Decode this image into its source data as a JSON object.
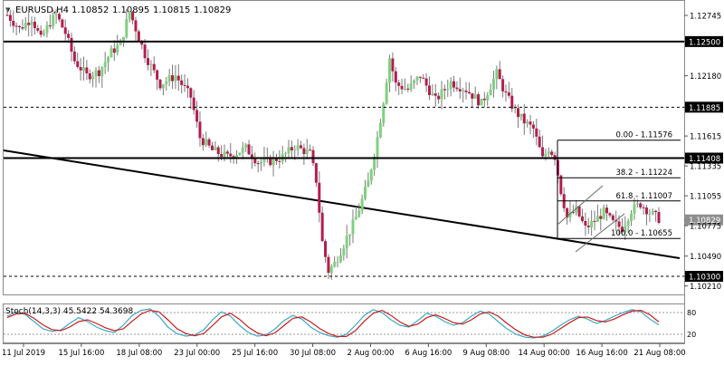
{
  "header": {
    "menu_arrow": "▼",
    "symbol": "EURUSD,H4",
    "open": "1.10852",
    "high": "1.10895",
    "low": "1.10815",
    "close": "1.10829"
  },
  "colors": {
    "bull": "#7ed17e",
    "bear": "#b21e4c",
    "wick": "#7a7a7a",
    "stoch_main": "#39a9c9",
    "stoch_signal": "#c81e1e",
    "current_price_box": "#8e8e8e",
    "level_box": "#000000"
  },
  "chart_data": [
    {
      "type": "candlestick",
      "symbol": "EURUSD",
      "timeframe": "H4",
      "ylim": [
        1.1019,
        1.1283
      ],
      "y_ticks": [
        "1.12745",
        "1.12500",
        "1.12180",
        "1.11885",
        "1.11615",
        "1.11408",
        "1.11335",
        "1.11055",
        "1.10829",
        "1.10775",
        "1.10490",
        "1.10300",
        "1.10210"
      ],
      "x_ticks": [
        "11 Jul 2019",
        "15 Jul 16:00",
        "18 Jul 08:00",
        "23 Jul 00:00",
        "25 Jul 16:00",
        "30 Jul 08:00",
        "2 Aug 00:00",
        "6 Aug 16:00",
        "9 Aug 08:00",
        "14 Aug 00:00",
        "16 Aug 16:00",
        "21 Aug 08:00"
      ],
      "current_price": "1.10829",
      "horizontal_levels": [
        {
          "price": 1.125,
          "label": "1.12500",
          "style": "solid"
        },
        {
          "price": 1.11885,
          "label": "1.11885",
          "style": "dashed"
        },
        {
          "price": 1.11408,
          "label": "1.11408",
          "style": "solid"
        },
        {
          "price": 1.103,
          "label": "1.10300",
          "style": "dashed"
        }
      ],
      "trendline": {
        "from": [
          "11 Jul 2019",
          1.1148
        ],
        "to": [
          "21 Aug 08:00",
          1.1047
        ]
      },
      "fibonacci": [
        {
          "label": "0.00 - 1.11576",
          "price": 1.11576
        },
        {
          "label": "38.2 - 1.11224",
          "price": 1.11224
        },
        {
          "label": "61.8 - 1.11007",
          "price": 1.11007
        },
        {
          "label": "100.0 - 1.10655",
          "price": 1.10655
        }
      ],
      "path_points": [
        [
          0,
          1.1275
        ],
        [
          4,
          1.1262
        ],
        [
          8,
          1.1272
        ],
        [
          11,
          1.1252
        ],
        [
          14,
          1.1268
        ],
        [
          16,
          1.1275
        ],
        [
          19,
          1.1258
        ],
        [
          22,
          1.1232
        ],
        [
          26,
          1.1218
        ],
        [
          30,
          1.1222
        ],
        [
          34,
          1.124
        ],
        [
          37,
          1.1248
        ],
        [
          40,
          1.1278
        ],
        [
          42,
          1.1262
        ],
        [
          45,
          1.1238
        ],
        [
          50,
          1.121
        ],
        [
          55,
          1.1218
        ],
        [
          60,
          1.1198
        ],
        [
          63,
          1.116
        ],
        [
          67,
          1.1148
        ],
        [
          72,
          1.1142
        ],
        [
          78,
          1.115
        ],
        [
          82,
          1.1137
        ],
        [
          86,
          1.1138
        ],
        [
          90,
          1.1142
        ],
        [
          94,
          1.1152
        ],
        [
          99,
          1.1145
        ],
        [
          101,
          1.112
        ],
        [
          103,
          1.1062
        ],
        [
          105,
          1.1035
        ],
        [
          107,
          1.1042
        ],
        [
          110,
          1.106
        ],
        [
          114,
          1.1085
        ],
        [
          118,
          1.1118
        ],
        [
          121,
          1.116
        ],
        [
          123,
          1.1195
        ],
        [
          125,
          1.1235
        ],
        [
          127,
          1.121
        ],
        [
          131,
          1.1205
        ],
        [
          135,
          1.1218
        ],
        [
          140,
          1.1195
        ],
        [
          145,
          1.1212
        ],
        [
          150,
          1.1205
        ],
        [
          155,
          1.1192
        ],
        [
          160,
          1.122
        ],
        [
          163,
          1.12
        ],
        [
          166,
          1.1185
        ],
        [
          169,
          1.1175
        ],
        [
          172,
          1.1168
        ],
        [
          175,
          1.114
        ],
        [
          177,
          1.115
        ],
        [
          179,
          1.1142
        ],
        [
          181,
          1.111
        ],
        [
          183,
          1.1085
        ],
        [
          186,
          1.1092
        ],
        [
          189,
          1.1075
        ],
        [
          192,
          1.1082
        ],
        [
          195,
          1.109
        ],
        [
          198,
          1.108
        ],
        [
          201,
          1.1075
        ],
        [
          204,
          1.1092
        ],
        [
          207,
          1.1098
        ],
        [
          210,
          1.109
        ],
        [
          213,
          1.1084
        ]
      ]
    },
    {
      "type": "line",
      "title": "Stoch(14,3,3) 45.5422 54.3698",
      "ylim": [
        0,
        100
      ],
      "levels": [
        20,
        80
      ],
      "level_labels": [
        "20",
        "80"
      ],
      "series": [
        {
          "name": "Main",
          "value": "45.5422",
          "values": [
            70,
            82,
            75,
            55,
            35,
            28,
            32,
            50,
            66,
            55,
            40,
            30,
            25,
            45,
            72,
            86,
            90,
            70,
            40,
            22,
            15,
            18,
            32,
            60,
            82,
            70,
            45,
            25,
            15,
            18,
            35,
            58,
            72,
            62,
            40,
            25,
            16,
            12,
            20,
            45,
            72,
            88,
            80,
            60,
            45,
            40,
            58,
            78,
            70,
            55,
            45,
            52,
            70,
            84,
            76,
            55,
            35,
            20,
            12,
            10,
            15,
            28,
            45,
            60,
            70,
            62,
            50,
            58,
            70,
            80,
            88,
            82,
            62,
            46
          ]
        },
        {
          "name": "Signal",
          "value": "54.3698",
          "values": [
            66,
            76,
            78,
            64,
            46,
            33,
            30,
            40,
            55,
            60,
            50,
            38,
            30,
            35,
            56,
            76,
            86,
            82,
            60,
            36,
            22,
            16,
            22,
            44,
            68,
            78,
            62,
            40,
            24,
            16,
            24,
            44,
            64,
            68,
            54,
            36,
            22,
            14,
            14,
            30,
            56,
            78,
            86,
            72,
            54,
            42,
            48,
            66,
            74,
            64,
            52,
            48,
            60,
            76,
            82,
            70,
            50,
            32,
            18,
            12,
            12,
            20,
            36,
            52,
            66,
            68,
            58,
            54,
            62,
            74,
            84,
            86,
            74,
            54
          ]
        }
      ]
    }
  ]
}
